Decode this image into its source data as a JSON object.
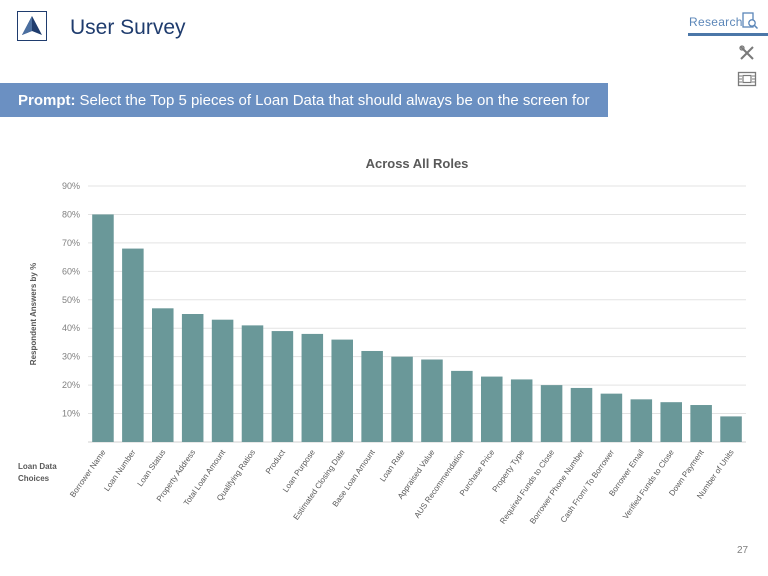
{
  "header": {
    "title": "User Survey",
    "nav_research": "Research",
    "page_number": "27"
  },
  "icons": {
    "logo": "triangle-logo-icon",
    "research": "document-search-icon",
    "tools": "tools-icon",
    "film": "film-icon"
  },
  "prompt": {
    "label": "Prompt:",
    "text": "Select the Top 5 pieces of Loan Data that should always be on the screen for"
  },
  "colors": {
    "bar": "#6a9899",
    "title_blue": "#1f3c6e",
    "prompt_bg": "#6b90c2"
  },
  "chart_data": {
    "type": "bar",
    "title": "Across All Roles",
    "ylabel": "Respondent Answers by %",
    "xlabel": "Loan Data Choices",
    "ylim": [
      0,
      90
    ],
    "yticks": [
      "10%",
      "20%",
      "30%",
      "40%",
      "50%",
      "60%",
      "70%",
      "80%",
      "90%"
    ],
    "grid": true,
    "categories": [
      "Borrower Name",
      "Loan Number",
      "Loan Status",
      "Property Address",
      "Total Loan Amount",
      "Qualifying Ratios",
      "Product",
      "Loan Purpose",
      "Estimated Closing Date",
      "Base Loan Amount",
      "Loan Rate",
      "Appraised Value",
      "AUS Recommendation",
      "Purchase Price",
      "Property Type",
      "Required Funds to Close",
      "Borrower Phone Number",
      "Cash From/ To Borrower",
      "Borrower Email",
      "Verified Funds to Close",
      "Down Payment",
      "Number of Units"
    ],
    "values": [
      80,
      68,
      47,
      45,
      43,
      41,
      39,
      38,
      36,
      32,
      30,
      29,
      25,
      23,
      22,
      20,
      19,
      17,
      15,
      14,
      13,
      9
    ]
  }
}
